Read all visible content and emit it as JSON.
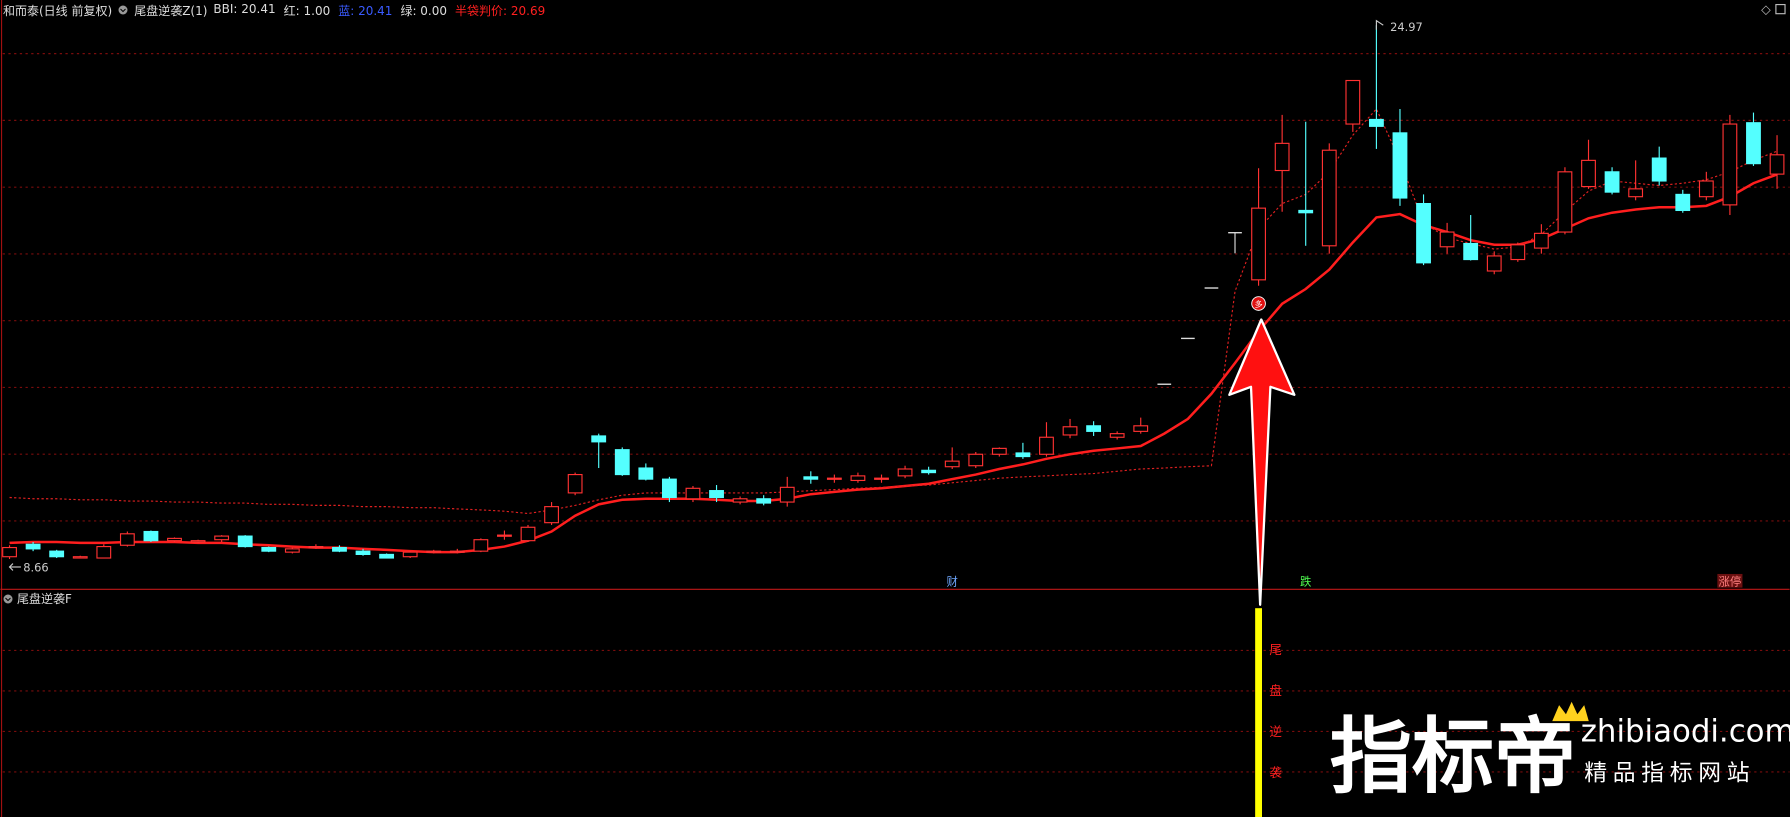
{
  "header": {
    "symbol": "和而泰(日线 前复权)",
    "indicator": "尾盘逆袭Z(1)",
    "fields": [
      {
        "text": "BBI: 20.41",
        "color": "#dddddd"
      },
      {
        "text": "红: 1.00",
        "color": "#dddddd"
      },
      {
        "text": "蓝: 20.41",
        "color": "#3a5bff"
      },
      {
        "text": "绿: 0.00",
        "color": "#dddddd"
      },
      {
        "text": "半袋判价: 20.69",
        "color": "#ff2020"
      }
    ]
  },
  "chart_data": {
    "type": "candlestick",
    "ylim": [
      7.75,
      25.74
    ],
    "grid": true,
    "up_color": "#ff3232",
    "down_color": "#54ffff",
    "flat_color": "#dddddd",
    "open": [
      8.73,
      9.11,
      8.9,
      8.69,
      8.69,
      9.08,
      9.5,
      9.22,
      9.18,
      9.25,
      9.36,
      9.01,
      8.87,
      9.01,
      9.01,
      8.9,
      8.8,
      8.73,
      8.87,
      8.87,
      8.9,
      9.36,
      9.22,
      9.77,
      10.68,
      12.42,
      12.0,
      11.44,
      11.1,
      10.5,
      10.75,
      10.4,
      10.5,
      10.4,
      11.17,
      11.1,
      11.06,
      11.1,
      11.2,
      11.37,
      11.48,
      11.51,
      11.86,
      11.9,
      11.86,
      12.45,
      12.73,
      12.38,
      12.56,
      14.0,
      15.4,
      16.94,
      18.63,
      17.19,
      20.53,
      19.31,
      18.23,
      21.95,
      22.09,
      21.68,
      19.52,
      18.2,
      18.3,
      17.46,
      17.81,
      18.16,
      18.65,
      20.04,
      20.49,
      19.73,
      20.91,
      19.8,
      19.73,
      19.48,
      21.99,
      20.42
    ],
    "high": [
      9.08,
      9.18,
      8.94,
      8.76,
      9.11,
      9.5,
      9.53,
      9.32,
      9.25,
      9.39,
      9.39,
      9.04,
      9.01,
      9.11,
      9.08,
      8.97,
      8.83,
      8.9,
      8.94,
      8.97,
      9.29,
      9.53,
      9.7,
      10.4,
      11.3,
      12.49,
      12.07,
      11.58,
      11.17,
      10.89,
      10.92,
      10.57,
      10.61,
      11.17,
      11.34,
      11.24,
      11.3,
      11.24,
      11.51,
      11.48,
      12.07,
      11.93,
      12.07,
      12.21,
      12.84,
      12.94,
      12.87,
      12.56,
      12.98,
      14.0,
      15.4,
      16.94,
      18.63,
      20.6,
      22.23,
      22.02,
      21.36,
      23.28,
      24.97,
      22.41,
      19.8,
      18.93,
      19.17,
      18.06,
      18.33,
      18.89,
      20.63,
      21.47,
      20.63,
      20.84,
      21.26,
      19.94,
      20.49,
      22.23,
      22.3,
      21.61
    ],
    "low": [
      8.66,
      8.9,
      8.69,
      8.69,
      8.69,
      9.04,
      9.18,
      9.18,
      9.15,
      9.18,
      9.01,
      8.87,
      8.83,
      8.97,
      8.87,
      8.76,
      8.69,
      8.69,
      8.83,
      8.83,
      8.87,
      9.25,
      9.18,
      9.7,
      10.61,
      11.44,
      11.2,
      11.06,
      10.4,
      10.4,
      10.4,
      10.33,
      10.3,
      10.26,
      10.96,
      10.99,
      10.99,
      10.99,
      11.13,
      11.24,
      11.41,
      11.44,
      11.79,
      11.72,
      11.79,
      12.35,
      12.42,
      12.31,
      12.49,
      14.0,
      15.4,
      16.94,
      18.0,
      17.01,
      19.27,
      18.23,
      17.99,
      21.71,
      21.19,
      19.45,
      17.64,
      17.99,
      17.78,
      17.36,
      17.74,
      17.99,
      18.58,
      19.97,
      19.8,
      19.62,
      20.07,
      19.24,
      19.62,
      19.17,
      20.67,
      19.97
    ],
    "close": [
      9.01,
      8.97,
      8.73,
      8.73,
      9.04,
      9.43,
      9.22,
      9.29,
      9.22,
      9.36,
      9.04,
      8.9,
      8.97,
      9.04,
      8.9,
      8.8,
      8.69,
      8.87,
      8.9,
      8.9,
      9.25,
      9.39,
      9.63,
      10.26,
      11.24,
      12.24,
      11.24,
      11.1,
      10.54,
      10.82,
      10.54,
      10.5,
      10.37,
      10.85,
      11.1,
      11.13,
      11.2,
      11.13,
      11.41,
      11.3,
      11.65,
      11.86,
      12.04,
      11.79,
      12.38,
      12.7,
      12.56,
      12.49,
      12.73,
      14.0,
      15.4,
      16.94,
      18.63,
      19.38,
      21.36,
      19.24,
      21.15,
      23.28,
      21.88,
      19.69,
      17.71,
      18.65,
      17.81,
      17.92,
      18.26,
      18.61,
      20.49,
      20.84,
      19.87,
      19.97,
      20.21,
      19.31,
      20.21,
      21.95,
      20.74,
      21.01
    ],
    "lines": [
      {
        "color": "#ff1e1e",
        "dash": false,
        "values": [
          9.15,
          9.18,
          9.18,
          9.15,
          9.15,
          9.18,
          9.18,
          9.18,
          9.15,
          9.15,
          9.11,
          9.08,
          9.04,
          9.01,
          9.01,
          8.97,
          8.94,
          8.9,
          8.87,
          8.87,
          8.94,
          9.04,
          9.22,
          9.5,
          9.98,
          10.33,
          10.47,
          10.5,
          10.5,
          10.5,
          10.47,
          10.43,
          10.43,
          10.5,
          10.64,
          10.71,
          10.78,
          10.82,
          10.89,
          10.96,
          11.1,
          11.24,
          11.41,
          11.55,
          11.72,
          11.86,
          11.97,
          12.04,
          12.11,
          12.49,
          12.94,
          13.71,
          14.65,
          15.62,
          16.46,
          16.91,
          17.5,
          18.33,
          19.1,
          19.2,
          18.86,
          18.65,
          18.4,
          18.26,
          18.26,
          18.44,
          18.75,
          19.07,
          19.24,
          19.34,
          19.41,
          19.41,
          19.45,
          19.73,
          20.14,
          20.41
        ]
      },
      {
        "color": "#e02020",
        "dash": true,
        "values": [
          10.54,
          10.5,
          10.5,
          10.47,
          10.47,
          10.43,
          10.43,
          10.4,
          10.4,
          10.37,
          10.37,
          10.33,
          10.33,
          10.3,
          10.3,
          10.26,
          10.26,
          10.23,
          10.23,
          10.19,
          10.16,
          10.12,
          10.05,
          10.16,
          10.3,
          10.47,
          10.61,
          10.68,
          10.68,
          10.68,
          10.68,
          10.68,
          10.68,
          10.71,
          10.75,
          10.78,
          10.82,
          10.85,
          10.89,
          10.92,
          10.99,
          11.06,
          11.13,
          11.17,
          11.2,
          11.24,
          11.27,
          11.34,
          11.41,
          11.44,
          11.48,
          11.51,
          16.84,
          18.75,
          19.52,
          19.8,
          20.49,
          21.61,
          22.41,
          20.84,
          18.93,
          18.47,
          18.3,
          18.13,
          18.2,
          18.58,
          19.27,
          19.9,
          20.21,
          20.14,
          20.07,
          20.14,
          20.25,
          20.49,
          20.84,
          21.12
        ]
      }
    ],
    "extremes": [
      {
        "index": 0,
        "value": 8.66,
        "side": "low"
      },
      {
        "index": 58,
        "value": 24.97,
        "side": "high"
      }
    ],
    "signals": [
      {
        "index": 40,
        "text": "财",
        "color": "#6fa8ff"
      },
      {
        "index": 55,
        "text": "跌",
        "color": "#50ff50"
      },
      {
        "index": 73,
        "text": "涨停",
        "color": "#ff8080"
      }
    ],
    "buy_marker": {
      "index": 53,
      "text": "多"
    }
  },
  "lower_panel": {
    "title": "尾盘逆袭F",
    "signal_index": 53,
    "signal_color": "#ffff00",
    "signal_text": [
      "尾",
      "盘",
      "逆",
      "袭"
    ]
  },
  "watermark": {
    "brand": "指标帝",
    "domain": "zhibiaodi.com",
    "slogan": "精品指标网站"
  }
}
